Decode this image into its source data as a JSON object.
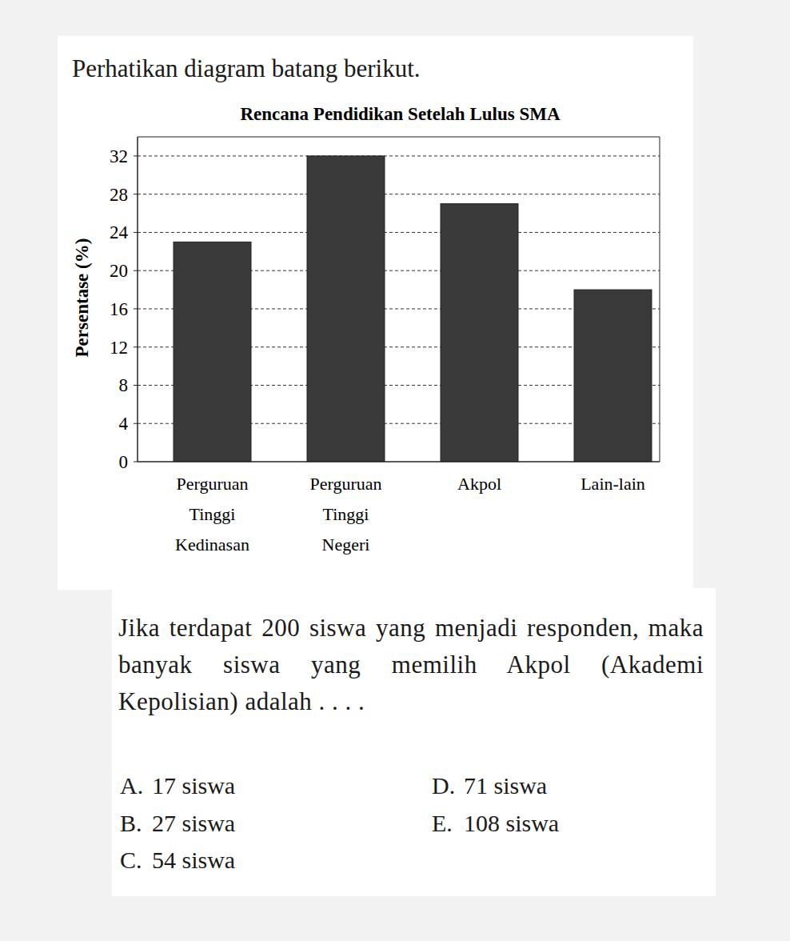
{
  "intro": "Perhatikan diagram batang berikut.",
  "chart_data": {
    "type": "bar",
    "title": "Rencana Pendidikan Setelah Lulus SMA",
    "y_label": "Persentase (%)",
    "categories": [
      "Perguruan Tinggi Kedinasan",
      "Perguruan Tinggi Negeri",
      "Akpol",
      "Lain-lain"
    ],
    "values": [
      23,
      32,
      27,
      18
    ],
    "color": "#3a3a3a",
    "ylim": [
      0,
      34
    ],
    "yticks": [
      0,
      4,
      8,
      12,
      16,
      20,
      24,
      28,
      32
    ],
    "grid": true
  },
  "question": "Jika terdapat 200 siswa yang menjadi responden, maka banyak siswa yang memilih Akpol (Akademi Kepolisian) adalah . . . .",
  "options": [
    {
      "letter": "A.",
      "text": "17 siswa"
    },
    {
      "letter": "B.",
      "text": "27 siswa"
    },
    {
      "letter": "C.",
      "text": "54 siswa"
    },
    {
      "letter": "D.",
      "text": "71 siswa"
    },
    {
      "letter": "E.",
      "text": "108 siswa"
    }
  ]
}
